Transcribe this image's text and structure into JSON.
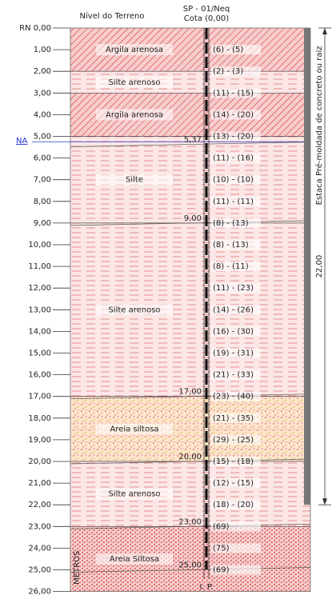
{
  "header": {
    "ground_level": "Nível do Terreno",
    "borehole": "SP - 01/Neq",
    "elevation": "Cota (0,00)"
  },
  "depth_labels": [
    "RN 0,00",
    "1,00",
    "2,00",
    "3,00",
    "4,00",
    "5,00",
    "6,00",
    "7,00",
    "8,00",
    "9,00",
    "10,00",
    "11,00",
    "12,00",
    "13,00",
    "14,00",
    "15,00",
    "16,00",
    "17,00",
    "18,00",
    "19,00",
    "20,00",
    "21,00",
    "22,00",
    "23,00",
    "24,00",
    "25,00",
    "26,00"
  ],
  "water_level": "NA",
  "layers": [
    "Argila arenosa",
    "Silte arenoso",
    "Argila arenosa",
    "Silte",
    "Silte arenoso",
    "Areia siltosa",
    "Silte arenoso",
    "Areia Siltosa"
  ],
  "boundary_labels": [
    "5,37",
    "9,00",
    "17,00",
    "20,00",
    "23,00",
    "25,00"
  ],
  "spt": [
    "(6) - (5)",
    "(2) - (3)",
    "(11) - (15)",
    "(14) - (20)",
    "(13) - (20)",
    "(11) - (16)",
    "(10) - (10)",
    "(11) - (11)",
    "(8) - (13)",
    "(8) - (13)",
    "(8) - (11)",
    "(11) - (23)",
    "(14) - (26)",
    "(16) - (30)",
    "(19) - (31)",
    "(21) - (33)",
    "(23) - (40)",
    "(21) - (35)",
    "(29) - (25)",
    "(15) - (18)",
    "(12) - (15)",
    "(18) - (20)",
    "(69)",
    "(75)",
    "(69)"
  ],
  "pile_label": "Estaca Pré-moldada de concreto ou raiz",
  "pile_length": "22,00",
  "end_label": "I. P.",
  "units_label": "METROS"
}
